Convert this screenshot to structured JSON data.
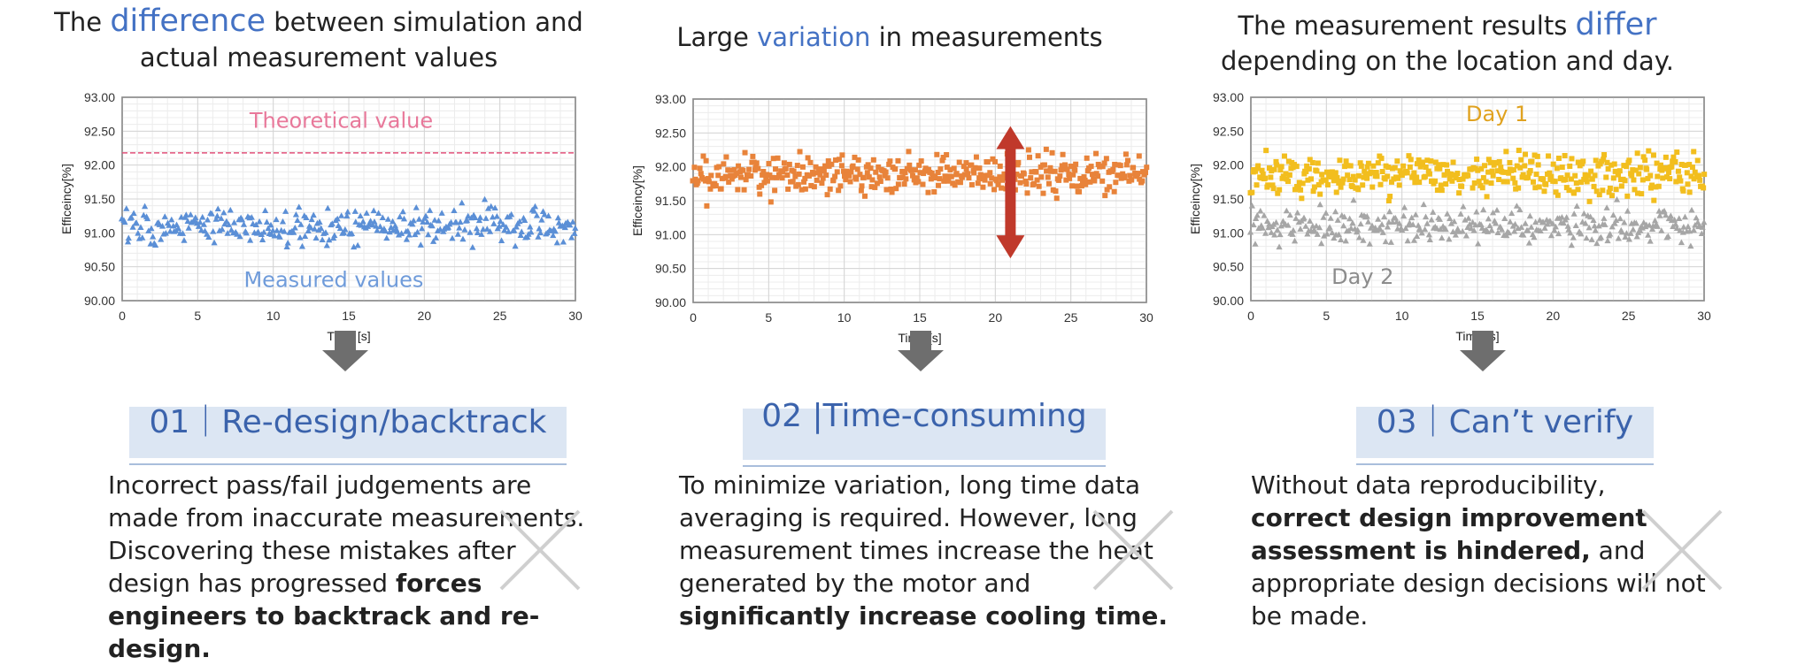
{
  "columns": [
    {
      "heading_line1_pre": "The ",
      "heading_line1_hl": "difference",
      "heading_line1_post": " between simulation and",
      "heading_line2": "actual measurement values",
      "label": "01｜Re-design/backtrack",
      "desc_plain1": "Incorrect pass/fail judgements are made from inaccurate measurements. Discovering these mistakes after design has progressed ",
      "desc_bold": "forces engineers to backtrack and re-design.",
      "desc_plain2": ""
    },
    {
      "heading_line1_pre": "Large ",
      "heading_line1_hl": "variation",
      "heading_line1_post": " in measurements",
      "label": "02 |Time-consuming",
      "desc_plain1": "To minimize variation, long time data averaging is required. However, long measurement times increase the heat generated by the motor and ",
      "desc_bold": "significantly increase cooling time.",
      "desc_plain2": ""
    },
    {
      "heading_line1_pre": "The measurement results ",
      "heading_line1_hl": "differ",
      "heading_line1_post": "",
      "heading_line2": "depending on the location and day.",
      "label": "03｜Can’t verify",
      "desc_plain1": "Without data reproducibility, ",
      "desc_bold": "correct design improvement assessment is hindered,",
      "desc_plain2": " and appropriate design decisions will not be made."
    }
  ],
  "colors": {
    "accent": "#4472C4",
    "blue_series": "#5B8FD6",
    "orange_series": "#E8833A",
    "gold_series": "#F2BE1E",
    "gray_series": "#A6A6A6",
    "theory_line": "#E0527A",
    "red_arrow": "#C0392B"
  },
  "chart_data": [
    {
      "type": "scatter",
      "xlabel": "Time [s]",
      "ylabel": "Efficeincy[%]",
      "xlim": [
        0,
        30
      ],
      "ylim": [
        90.0,
        93.0
      ],
      "xticks": [
        0,
        5,
        10,
        15,
        20,
        25,
        30
      ],
      "yticks": [
        "90.00",
        "90.50",
        "91.00",
        "91.50",
        "92.00",
        "92.50",
        "93.00"
      ],
      "grid": true,
      "annotations": [
        "Theoretical value",
        "Measured values"
      ],
      "reference_line": {
        "name": "Theoretical value",
        "y": 92.18
      },
      "series": [
        {
          "name": "Measured values",
          "marker": "triangle",
          "mean": 91.1,
          "spread": 0.22,
          "count": 340,
          "min": 90.45,
          "max": 91.6
        }
      ]
    },
    {
      "type": "scatter",
      "xlabel": "Time [s]",
      "ylabel": "Efficeincy[%]",
      "xlim": [
        0,
        30
      ],
      "ylim": [
        90.0,
        93.0
      ],
      "xticks": [
        0,
        5,
        10,
        15,
        20,
        25,
        30
      ],
      "yticks": [
        "90.00",
        "90.50",
        "91.00",
        "91.50",
        "92.00",
        "92.50",
        "93.00"
      ],
      "grid": true,
      "series": [
        {
          "marker": "square",
          "mean": 91.88,
          "spread": 0.25,
          "count": 420,
          "min": 91.15,
          "max": 92.62
        }
      ],
      "variation_arrow": {
        "x": 21,
        "y_from": 90.65,
        "y_to": 92.6
      }
    },
    {
      "type": "scatter",
      "xlabel": "Time [s]",
      "ylabel": "Efficeincy[%]",
      "xlim": [
        0,
        30
      ],
      "ylim": [
        90.0,
        93.0
      ],
      "xticks": [
        0,
        5,
        10,
        15,
        20,
        25,
        30
      ],
      "yticks": [
        "90.00",
        "90.50",
        "91.00",
        "91.50",
        "92.00",
        "92.50",
        "93.00"
      ],
      "grid": true,
      "series": [
        {
          "name": "Day 1",
          "marker": "square",
          "mean": 91.88,
          "spread": 0.25,
          "count": 420,
          "min": 91.3,
          "max": 92.62
        },
        {
          "name": "Day 2",
          "marker": "triangle",
          "mean": 91.1,
          "spread": 0.22,
          "count": 340,
          "min": 90.45,
          "max": 91.6
        }
      ]
    }
  ]
}
